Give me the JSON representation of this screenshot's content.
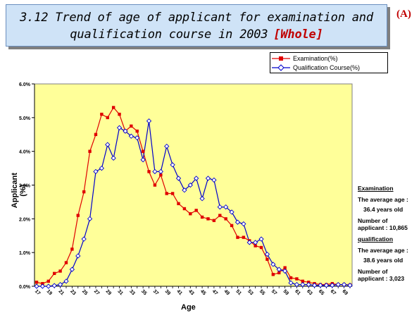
{
  "header": {
    "title_line1": "3.12 Trend of age of applicant for examination and",
    "title_line2": "qualification course in 2003",
    "title_tag": "[Whole]",
    "panel_label": "(A)"
  },
  "legend": {
    "items": [
      {
        "label": "Examination(%)",
        "color": "#e00000",
        "marker": "square"
      },
      {
        "label": "Qualification Course(%)",
        "color": "#0000cc",
        "marker": "diamond"
      }
    ]
  },
  "stats": {
    "examination_title": "Examination",
    "exam_avg_label": "The average age :",
    "exam_avg_value": "36.4 years old",
    "exam_num_label": "Number of",
    "exam_num_value": "applicant : 10,865",
    "qualification_title": "qualification",
    "qual_avg_label": "The average age :",
    "qual_avg_value": "38.6 years old",
    "qual_num_label": "Number of",
    "qual_num_value": "applicant : 3,023"
  },
  "chart_data": {
    "type": "line",
    "title": "3.12 Trend of age of applicant for examination and qualification course in 2003 [Whole]",
    "xlabel": "Age",
    "ylabel": "Applicant (%)",
    "ylim": [
      0,
      6
    ],
    "y_ticks": [
      "0.0%",
      "1.0%",
      "2.0%",
      "3.0%",
      "4.0%",
      "5.0%",
      "6.0%"
    ],
    "x_ticks": [
      "17",
      "19",
      "21",
      "23",
      "25",
      "27",
      "29",
      "31",
      "33",
      "35",
      "37",
      "39",
      "41",
      "43",
      "45",
      "47",
      "49",
      "51",
      "53",
      "55",
      "57",
      "59",
      "61",
      "63",
      "65",
      "67",
      "69"
    ],
    "x": [
      17,
      18,
      19,
      20,
      21,
      22,
      23,
      24,
      25,
      26,
      27,
      28,
      29,
      30,
      31,
      32,
      33,
      34,
      35,
      36,
      37,
      38,
      39,
      40,
      41,
      42,
      43,
      44,
      45,
      46,
      47,
      48,
      49,
      50,
      51,
      52,
      53,
      54,
      55,
      56,
      57,
      58,
      59,
      60,
      61,
      62,
      63,
      64,
      65,
      66,
      67,
      68,
      69,
      70
    ],
    "series": [
      {
        "name": "Examination(%)",
        "color": "#e00000",
        "values": [
          0.12,
          0.08,
          0.15,
          0.38,
          0.45,
          0.7,
          1.1,
          2.1,
          2.8,
          4.0,
          4.5,
          5.1,
          5.0,
          5.3,
          5.1,
          4.6,
          4.75,
          4.6,
          4.0,
          3.4,
          3.0,
          3.3,
          2.75,
          2.75,
          2.45,
          2.3,
          2.15,
          2.25,
          2.05,
          2.0,
          1.95,
          2.1,
          2.0,
          1.8,
          1.45,
          1.45,
          1.35,
          1.2,
          1.15,
          0.8,
          0.35,
          0.4,
          0.55,
          0.25,
          0.22,
          0.15,
          0.12,
          0.08,
          0.05,
          0.05,
          0.08,
          0.05,
          0.05,
          0.04
        ]
      },
      {
        "name": "Qualification Course(%)",
        "color": "#0000cc",
        "values": [
          0.0,
          0.0,
          0.0,
          0.02,
          0.05,
          0.15,
          0.5,
          0.9,
          1.4,
          2.0,
          3.4,
          3.5,
          4.2,
          3.8,
          4.7,
          4.6,
          4.45,
          4.4,
          3.75,
          4.9,
          3.4,
          3.4,
          4.15,
          3.6,
          3.2,
          2.85,
          3.0,
          3.2,
          2.6,
          3.2,
          3.15,
          2.35,
          2.35,
          2.2,
          1.9,
          1.85,
          1.3,
          1.3,
          1.4,
          0.95,
          0.65,
          0.5,
          0.45,
          0.1,
          0.05,
          0.05,
          0.05,
          0.03,
          0.03,
          0.03,
          0.03,
          0.05,
          0.05,
          0.03
        ]
      }
    ],
    "grid": false,
    "legend_position": "top-right"
  }
}
